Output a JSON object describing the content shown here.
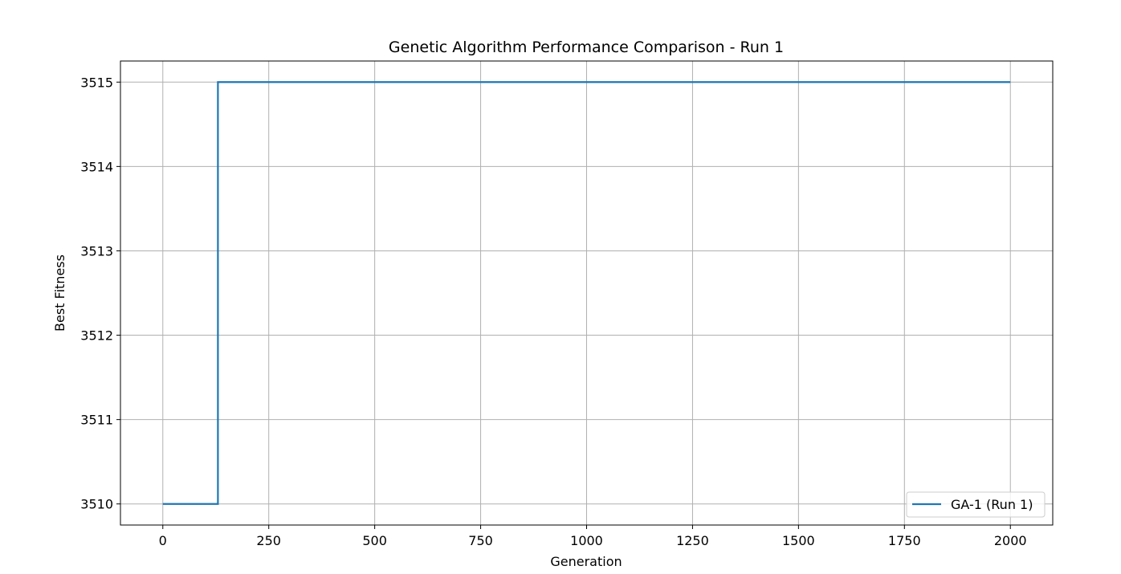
{
  "chart_data": {
    "type": "line",
    "drawstyle": "steps-post",
    "title": "Genetic Algorithm Performance Comparison - Run 1",
    "xlabel": "Generation",
    "ylabel": "Best Fitness",
    "xlim": [
      -100,
      2100
    ],
    "ylim": [
      3509.75,
      3515.25
    ],
    "xticks": [
      0,
      250,
      500,
      750,
      1000,
      1250,
      1500,
      1750,
      2000
    ],
    "xtick_labels": [
      "0",
      "250",
      "500",
      "750",
      "1000",
      "1250",
      "1500",
      "1750",
      "2000"
    ],
    "yticks": [
      3510,
      3511,
      3512,
      3513,
      3514,
      3515
    ],
    "ytick_labels": [
      "3510",
      "3511",
      "3512",
      "3513",
      "3514",
      "3515"
    ],
    "grid": true,
    "legend_position": "lower-right",
    "series": [
      {
        "name": "GA-1 (Run 1)",
        "color": "#1f77b4",
        "x": [
          0,
          130,
          2000
        ],
        "y": [
          3510,
          3515,
          3515
        ]
      }
    ]
  }
}
